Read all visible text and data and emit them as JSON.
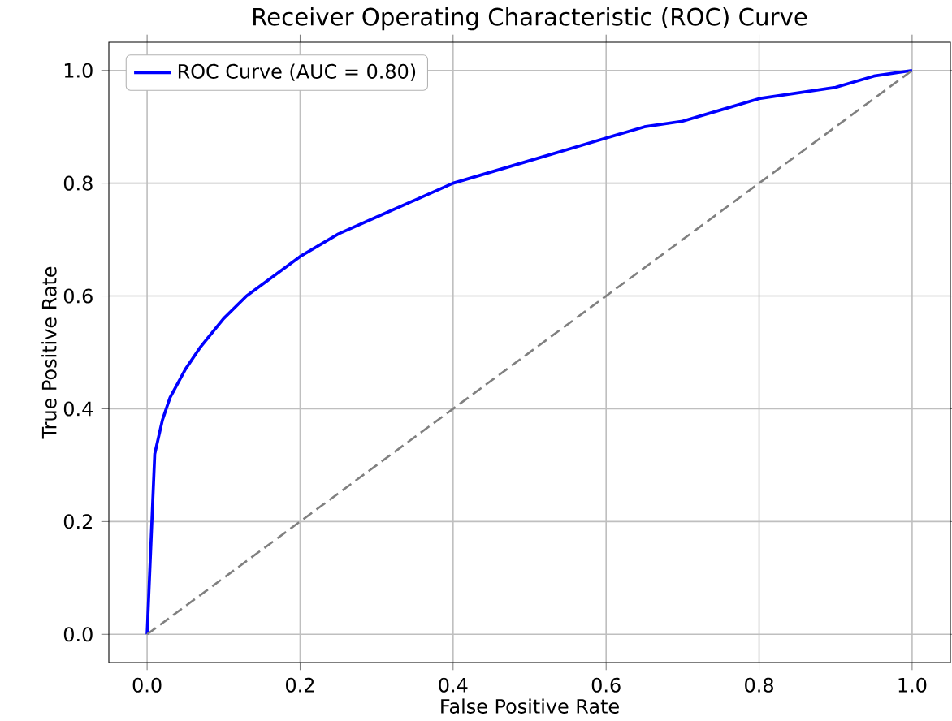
{
  "chart_data": {
    "type": "line",
    "title": "Receiver Operating Characteristic (ROC) Curve",
    "xlabel": "False Positive Rate",
    "ylabel": "True Positive Rate",
    "xlim": [
      -0.05,
      1.05
    ],
    "ylim": [
      -0.05,
      1.05
    ],
    "xticks": [
      {
        "value": 0,
        "label": "0.0"
      },
      0.2,
      0.4,
      0.6,
      0.8,
      {
        "value": 1,
        "label": "1.0"
      }
    ],
    "yticks": [
      {
        "value": 0,
        "label": "0.0"
      },
      0.2,
      0.4,
      0.6,
      0.8,
      {
        "value": 1,
        "label": "1.0"
      }
    ],
    "grid": true,
    "legend": "top left",
    "series": [
      {
        "name": "ROC Curve (AUC = 0.80)",
        "color": "#0000ff",
        "line_style": "solid",
        "x": [
          0,
          0.01,
          0.02,
          0.03,
          0.05,
          0.07,
          0.1,
          0.13,
          0.16,
          0.2,
          0.25,
          0.3,
          0.35,
          0.4,
          0.45,
          0.5,
          0.55,
          0.6,
          0.65,
          0.7,
          0.75,
          0.8,
          0.85,
          0.9,
          0.95,
          1.0
        ],
        "values": [
          0,
          0.32,
          0.38,
          0.42,
          0.47,
          0.51,
          0.56,
          0.6,
          0.63,
          0.67,
          0.71,
          0.74,
          0.77,
          0.8,
          0.82,
          0.84,
          0.86,
          0.88,
          0.9,
          0.91,
          0.93,
          0.95,
          0.96,
          0.97,
          0.99,
          1.0
        ]
      },
      {
        "color": "#808080",
        "line_style": "dashed",
        "x": [
          0,
          1
        ],
        "values": [
          0,
          1
        ]
      }
    ]
  }
}
